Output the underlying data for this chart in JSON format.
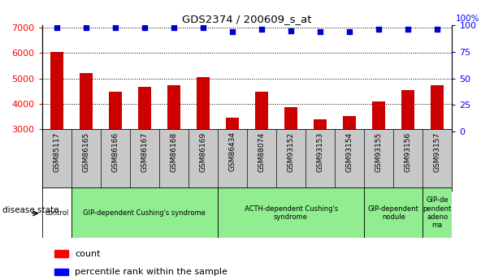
{
  "title": "GDS2374 / 200609_s_at",
  "categories": [
    "GSM85117",
    "GSM86165",
    "GSM86166",
    "GSM86167",
    "GSM86168",
    "GSM86169",
    "GSM86434",
    "GSM88074",
    "GSM93152",
    "GSM93153",
    "GSM93154",
    "GSM93155",
    "GSM93156",
    "GSM93157"
  ],
  "bar_values": [
    6030,
    5220,
    4490,
    4680,
    4730,
    5060,
    3450,
    4460,
    3870,
    3380,
    3500,
    4080,
    4540,
    4720
  ],
  "percentile_values": [
    98,
    98,
    98,
    98,
    98,
    98,
    94,
    96,
    95,
    94,
    94,
    96,
    96,
    96
  ],
  "ylim_left": [
    2900,
    7100
  ],
  "ylim_right": [
    0,
    100
  ],
  "yticks_left": [
    3000,
    4000,
    5000,
    6000,
    7000
  ],
  "yticks_right": [
    0,
    25,
    50,
    75,
    100
  ],
  "bar_color": "#cc0000",
  "scatter_color": "#0000cc",
  "plot_bg": "#ffffff",
  "xtick_bg": "#c8c8c8",
  "group_labels": [
    "control",
    "GIP-dependent Cushing's syndrome",
    "ACTH-dependent Cushing's\nsyndrome",
    "GIP-dependent\nnodule",
    "GIP-de\npendent\nadeno\nma"
  ],
  "group_ranges": [
    [
      0,
      1
    ],
    [
      1,
      6
    ],
    [
      6,
      11
    ],
    [
      11,
      13
    ],
    [
      13,
      14
    ]
  ],
  "group_colors": [
    "#ffffff",
    "#90ee90",
    "#90ee90",
    "#90ee90",
    "#90ee90"
  ]
}
